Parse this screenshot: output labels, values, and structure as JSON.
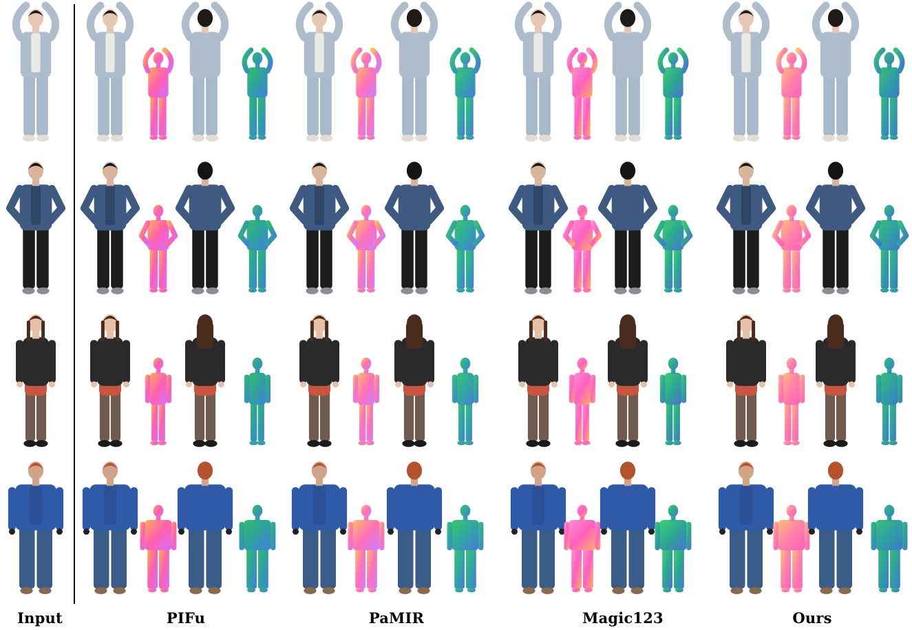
{
  "column_labels": {
    "input": "Input",
    "pifu": "PIFu",
    "pamir": "PaMIR",
    "magic123": "Magic123",
    "ours": "Ours"
  },
  "subjects": [
    {
      "name": "woman-denim-jacket",
      "pose": "arms-up",
      "colors": {
        "skin": "#e6c7b4",
        "hair": "#1e1a18",
        "top": "#aebdcc",
        "inner": "#f1eeea",
        "bottom": "#a7bacb",
        "shoes": "#e4ddd5"
      }
    },
    {
      "name": "man-patterned-jacket",
      "pose": "hands-on-hips",
      "colors": {
        "skin": "#d8b59a",
        "hair": "#141414",
        "top": "#3f5a80",
        "inner": "#2e4466",
        "bottom": "#1c1c1f",
        "shoes": "#8a8e94"
      }
    },
    {
      "name": "woman-red-dress",
      "pose": "standing",
      "colors": {
        "skin": "#e5c1a8",
        "hair": "#4a2c1f",
        "top": "#2a2a2c",
        "inner": "#c9553f",
        "bottom": "#6e5a4e",
        "shoes": "#1c1a1a"
      }
    },
    {
      "name": "person-blue-parka",
      "pose": "standing-wide",
      "colors": {
        "skin": "#d2a487",
        "hair": "#b4522b",
        "top": "#2f5aa8",
        "inner": "#2b4f95",
        "bottom": "#3a5c88",
        "shoes": "#8a6a4a"
      }
    }
  ],
  "methods": [
    {
      "key": "pifu",
      "back_tint": "#6a6a70",
      "normal_front": [
        "#ffb050",
        "#ff5fb0",
        "#d070ff"
      ],
      "normal_back": [
        "#30c060",
        "#30a0a0",
        "#4080e0"
      ]
    },
    {
      "key": "pamir",
      "back_tint": "#505058",
      "normal_front": [
        "#ffc060",
        "#ff70b8",
        "#c880ff"
      ],
      "normal_back": [
        "#38c868",
        "#30a8a0",
        "#4878e0"
      ]
    },
    {
      "key": "magic123",
      "back_tint": "#303040",
      "normal_front": [
        "#ff90d0",
        "#ff60c0",
        "#ffb060"
      ],
      "normal_back": [
        "#40d070",
        "#2aa890",
        "#5070d8"
      ]
    },
    {
      "key": "ours",
      "back_tint": "#404048",
      "normal_front": [
        "#ffc078",
        "#ff80a8",
        "#ff60c0"
      ],
      "normal_back": [
        "#38c070",
        "#30a0a0",
        "#3c78d0"
      ]
    }
  ]
}
